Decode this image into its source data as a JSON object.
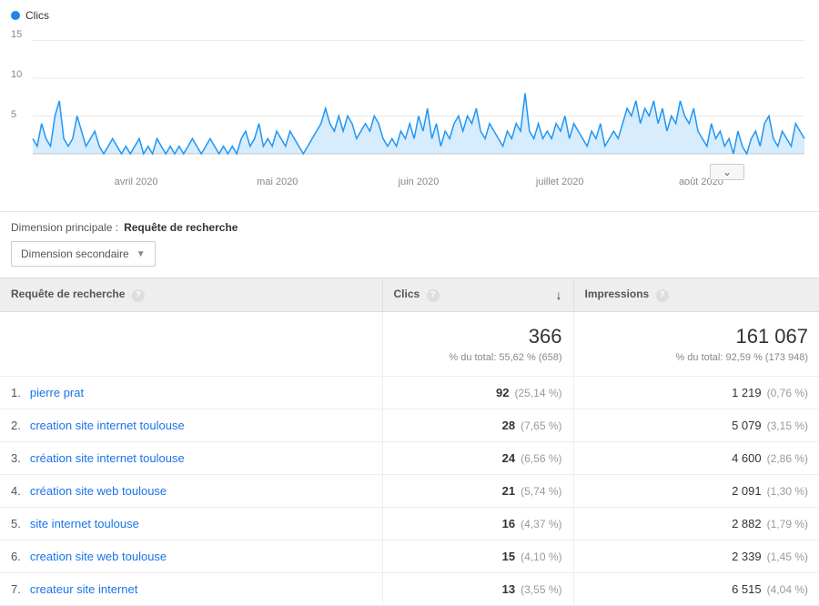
{
  "chart": {
    "legend_label": "Clics",
    "stroke_color": "#2196f3",
    "fill_color": "rgba(33,150,243,0.18)",
    "grid_color": "#e8e8e8",
    "y_ticks": [
      "15",
      "10",
      "5"
    ],
    "x_labels": [
      "avril 2020",
      "mai 2020",
      "juin 2020",
      "juillet 2020",
      "août 2020"
    ],
    "y_max": 16,
    "values": [
      2,
      1,
      4,
      2,
      1,
      5,
      7,
      2,
      1,
      2,
      5,
      3,
      1,
      2,
      3,
      1,
      0,
      1,
      2,
      1,
      0,
      1,
      0,
      1,
      2,
      0,
      1,
      0,
      2,
      1,
      0,
      1,
      0,
      1,
      0,
      1,
      2,
      1,
      0,
      1,
      2,
      1,
      0,
      1,
      0,
      1,
      0,
      2,
      3,
      1,
      2,
      4,
      1,
      2,
      1,
      3,
      2,
      1,
      3,
      2,
      1,
      0,
      1,
      2,
      3,
      4,
      6,
      4,
      3,
      5,
      3,
      5,
      4,
      2,
      3,
      4,
      3,
      5,
      4,
      2,
      1,
      2,
      1,
      3,
      2,
      4,
      2,
      5,
      3,
      6,
      2,
      4,
      1,
      3,
      2,
      4,
      5,
      3,
      5,
      4,
      6,
      3,
      2,
      4,
      3,
      2,
      1,
      3,
      2,
      4,
      3,
      8,
      3,
      2,
      4,
      2,
      3,
      2,
      4,
      3,
      5,
      2,
      4,
      3,
      2,
      1,
      3,
      2,
      4,
      1,
      2,
      3,
      2,
      4,
      6,
      5,
      7,
      4,
      6,
      5,
      7,
      4,
      6,
      3,
      5,
      4,
      7,
      5,
      4,
      6,
      3,
      2,
      1,
      4,
      2,
      3,
      1,
      2,
      0,
      3,
      1,
      0,
      2,
      3,
      1,
      4,
      5,
      2,
      1,
      3,
      2,
      1,
      4,
      3,
      2
    ]
  },
  "dimension_label": "Dimension principale :",
  "dimension_active": "Requête de recherche",
  "secondary_button": "Dimension secondaire",
  "columns": {
    "query": "Requête de recherche",
    "clicks": "Clics",
    "impressions": "Impressions"
  },
  "totals": {
    "clicks": "366",
    "clicks_sub": "% du total: 55,62 % (658)",
    "impressions": "161 067",
    "impressions_sub": "% du total: 92,59 % (173 948)"
  },
  "rows": [
    {
      "idx": "1.",
      "query": "pierre prat",
      "clicks": "92",
      "clicks_pct": "(25,14 %)",
      "impr": "1 219",
      "impr_pct": "(0,76 %)"
    },
    {
      "idx": "2.",
      "query": "creation site internet toulouse",
      "clicks": "28",
      "clicks_pct": "(7,65 %)",
      "impr": "5 079",
      "impr_pct": "(3,15 %)"
    },
    {
      "idx": "3.",
      "query": "création site internet toulouse",
      "clicks": "24",
      "clicks_pct": "(6,56 %)",
      "impr": "4 600",
      "impr_pct": "(2,86 %)"
    },
    {
      "idx": "4.",
      "query": "création site web toulouse",
      "clicks": "21",
      "clicks_pct": "(5,74 %)",
      "impr": "2 091",
      "impr_pct": "(1,30 %)"
    },
    {
      "idx": "5.",
      "query": "site internet toulouse",
      "clicks": "16",
      "clicks_pct": "(4,37 %)",
      "impr": "2 882",
      "impr_pct": "(1,79 %)"
    },
    {
      "idx": "6.",
      "query": "creation site web toulouse",
      "clicks": "15",
      "clicks_pct": "(4,10 %)",
      "impr": "2 339",
      "impr_pct": "(1,45 %)"
    },
    {
      "idx": "7.",
      "query": "createur site internet",
      "clicks": "13",
      "clicks_pct": "(3,55 %)",
      "impr": "6 515",
      "impr_pct": "(4,04 %)"
    }
  ]
}
